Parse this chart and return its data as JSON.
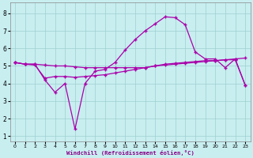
{
  "xlabel": "Windchill (Refroidissement éolien,°C)",
  "background_color": "#c8eef0",
  "grid_color": "#9ecfcf",
  "line_color": "#aa00aa",
  "xlim": [
    -0.5,
    23.5
  ],
  "ylim": [
    0.7,
    8.6
  ],
  "xticks": [
    0,
    1,
    2,
    3,
    4,
    5,
    6,
    7,
    8,
    9,
    10,
    11,
    12,
    13,
    14,
    15,
    16,
    17,
    18,
    19,
    20,
    21,
    22,
    23
  ],
  "yticks": [
    1,
    2,
    3,
    4,
    5,
    6,
    7,
    8
  ],
  "line1_x": [
    0,
    1,
    2,
    3,
    4,
    5,
    6,
    7,
    8,
    9,
    10,
    11,
    12,
    13,
    14,
    15,
    16,
    17,
    18,
    19,
    20,
    21,
    22,
    23
  ],
  "line1_y": [
    5.2,
    5.1,
    5.1,
    5.05,
    5.0,
    5.0,
    4.95,
    4.9,
    4.9,
    4.9,
    4.9,
    4.9,
    4.9,
    4.9,
    5.0,
    5.05,
    5.1,
    5.15,
    5.2,
    5.25,
    5.3,
    5.35,
    5.4,
    5.45
  ],
  "line2_x": [
    0,
    1,
    2,
    3,
    4,
    5,
    6,
    7,
    8,
    9,
    10,
    11,
    12,
    13,
    14,
    15,
    16,
    17,
    18,
    19,
    20,
    21,
    22,
    23
  ],
  "line2_y": [
    5.2,
    5.1,
    5.1,
    4.2,
    3.5,
    4.0,
    1.4,
    4.0,
    4.7,
    4.8,
    5.2,
    5.9,
    6.5,
    7.0,
    7.4,
    7.8,
    7.75,
    7.35,
    5.8,
    5.4,
    5.4,
    4.9,
    5.4,
    3.9
  ],
  "line3_x": [
    0,
    1,
    2,
    3,
    4,
    5,
    6,
    7,
    8,
    9,
    10,
    11,
    12,
    13,
    14,
    15,
    16,
    17,
    18,
    19,
    20,
    21,
    22,
    23
  ],
  "line3_y": [
    5.2,
    5.1,
    5.05,
    4.3,
    4.4,
    4.4,
    4.35,
    4.4,
    4.45,
    4.5,
    4.6,
    4.7,
    4.8,
    4.9,
    5.0,
    5.1,
    5.15,
    5.2,
    5.25,
    5.3,
    5.3,
    5.35,
    5.35,
    3.9
  ]
}
